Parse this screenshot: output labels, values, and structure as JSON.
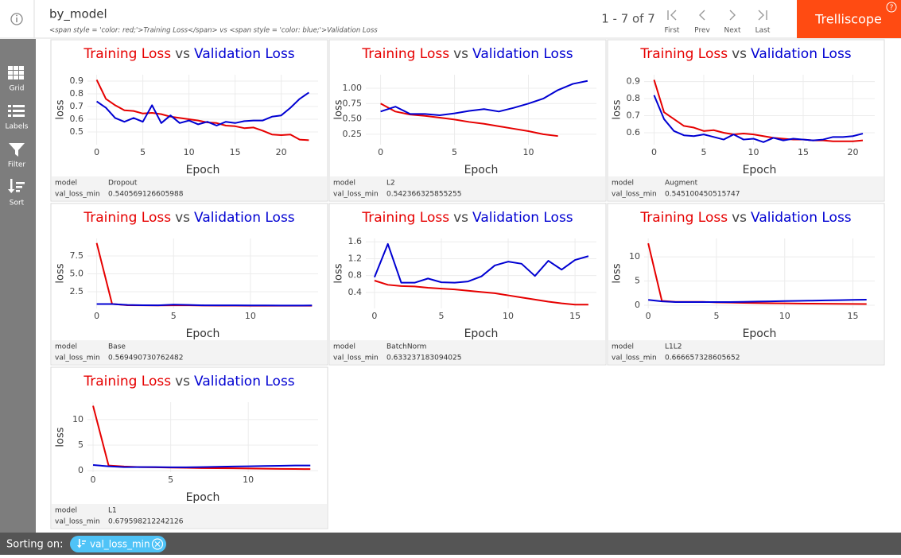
{
  "header": {
    "title": "by_model",
    "subtitle": "<span style = 'color: red;'>Training Loss</span> vs <span style = 'color: blue;'>Validation Loss",
    "pagination": "1 - 7 of 7",
    "nav": [
      "First",
      "Prev",
      "Next",
      "Last"
    ],
    "brand": "Trelliscope",
    "help": "?"
  },
  "sidebar": [
    "Grid",
    "Labels",
    "Filter",
    "Sort"
  ],
  "footer": {
    "label": "Sorting on:",
    "sort": "val_loss_min"
  },
  "panels": [
    {
      "fields": [
        {
          "name": "model",
          "value": "Dropout"
        },
        {
          "name": "val_loss_min",
          "value": 0.540569126605988
        }
      ]
    },
    {
      "fields": [
        {
          "name": "model",
          "value": "L2"
        },
        {
          "name": "val_loss_min",
          "value": 0.542366325855255
        }
      ]
    },
    {
      "fields": [
        {
          "name": "model",
          "value": "Augment"
        },
        {
          "name": "val_loss_min",
          "value": 0.545100450515747
        }
      ]
    },
    {
      "fields": [
        {
          "name": "model",
          "value": "Base"
        },
        {
          "name": "val_loss_min",
          "value": 0.569490730762482
        }
      ]
    },
    {
      "fields": [
        {
          "name": "model",
          "value": "BatchNorm"
        },
        {
          "name": "val_loss_min",
          "value": 0.633237183094025
        }
      ]
    },
    {
      "fields": [
        {
          "name": "model",
          "value": "L1L2"
        },
        {
          "name": "val_loss_min",
          "value": 0.666657328605652
        }
      ]
    },
    {
      "fields": [
        {
          "name": "model",
          "value": "L1"
        },
        {
          "name": "val_loss_min",
          "value": 0.679598212242126
        }
      ]
    }
  ],
  "chart_data": [
    {
      "type": "line",
      "title_joiner": "vs",
      "xlabel": "Epoch",
      "ylabel": "loss",
      "grid": true,
      "x": [
        0,
        1,
        2,
        3,
        4,
        5,
        6,
        7,
        8,
        9,
        10,
        11,
        12,
        13,
        14,
        15,
        16,
        17,
        18,
        19,
        20,
        21,
        22,
        23
      ],
      "series": [
        {
          "name": "Training Loss",
          "color": "#e60000",
          "values": [
            0.91,
            0.76,
            0.71,
            0.67,
            0.665,
            0.645,
            0.65,
            0.64,
            0.62,
            0.61,
            0.6,
            0.59,
            0.575,
            0.57,
            0.55,
            0.545,
            0.53,
            0.535,
            0.51,
            0.48,
            0.475,
            0.48,
            0.44,
            0.435
          ]
        },
        {
          "name": "Validation Loss",
          "color": "#0000d2",
          "values": [
            0.74,
            0.69,
            0.61,
            0.58,
            0.61,
            0.58,
            0.71,
            0.57,
            0.63,
            0.57,
            0.59,
            0.56,
            0.58,
            0.55,
            0.58,
            0.57,
            0.585,
            0.59,
            0.59,
            0.62,
            0.63,
            0.69,
            0.76,
            0.81
          ]
        }
      ],
      "xlim": [
        -1,
        24
      ],
      "ylim": [
        0.4,
        0.95
      ],
      "xticks": [
        0,
        5,
        10,
        15,
        20
      ],
      "yticks": [
        0.5,
        0.6,
        0.7,
        0.8,
        0.9
      ]
    },
    {
      "type": "line",
      "title_joiner": "vs",
      "xlabel": "Epoch",
      "ylabel": "loss",
      "grid": true,
      "x": [
        0,
        1,
        2,
        3,
        4,
        5,
        6,
        7,
        8,
        9,
        10,
        11,
        12,
        13,
        14
      ],
      "series": [
        {
          "name": "Training Loss",
          "color": "#e60000",
          "values": [
            0.75,
            0.62,
            0.57,
            0.55,
            0.52,
            0.49,
            0.45,
            0.42,
            0.38,
            0.34,
            0.3,
            0.25,
            0.22,
            null,
            null
          ]
        },
        {
          "name": "Validation Loss",
          "color": "#0000d2",
          "values": [
            0.62,
            0.7,
            0.58,
            0.58,
            0.56,
            0.59,
            0.63,
            0.66,
            0.62,
            0.68,
            0.75,
            0.83,
            0.97,
            1.07,
            1.12
          ]
        }
      ],
      "xlim": [
        -1,
        14.6
      ],
      "ylim": [
        0.08,
        1.22
      ],
      "xticks": [
        0,
        5,
        10
      ],
      "yticks": [
        0.25,
        {
          "value": 0.5,
          "label": "0.50"
        },
        0.75,
        {
          "value": 1,
          "label": "1.00"
        }
      ]
    },
    {
      "type": "line",
      "title_joiner": "vs",
      "xlabel": "Epoch",
      "ylabel": "loss",
      "grid": true,
      "x": [
        0,
        1,
        2,
        3,
        4,
        5,
        6,
        7,
        8,
        9,
        10,
        11,
        12,
        13,
        14,
        15,
        16,
        17,
        18,
        19,
        20,
        21
      ],
      "series": [
        {
          "name": "Training Loss",
          "color": "#e60000",
          "values": [
            0.91,
            0.72,
            0.68,
            0.64,
            0.63,
            0.61,
            0.615,
            0.6,
            0.59,
            0.595,
            0.59,
            0.58,
            0.57,
            0.565,
            0.56,
            0.56,
            0.555,
            0.555,
            0.55,
            0.55,
            0.55,
            0.555
          ]
        },
        {
          "name": "Validation Loss",
          "color": "#0000d2",
          "values": [
            0.82,
            0.68,
            0.61,
            0.585,
            0.58,
            0.59,
            0.575,
            0.56,
            0.59,
            0.56,
            0.565,
            0.545,
            0.57,
            0.555,
            0.565,
            0.56,
            0.555,
            0.56,
            0.575,
            0.575,
            0.58,
            0.595
          ]
        }
      ],
      "xlim": [
        -1,
        22.2
      ],
      "ylim": [
        0.53,
        0.94
      ],
      "xticks": [
        0,
        5,
        10,
        15,
        20
      ],
      "yticks": [
        0.6,
        0.7,
        0.8,
        0.9
      ]
    },
    {
      "type": "line",
      "title_joiner": "vs",
      "xlabel": "Epoch",
      "ylabel": "loss",
      "grid": true,
      "x": [
        0,
        1,
        2,
        3,
        4,
        5,
        6,
        7,
        8,
        9,
        10,
        11,
        12,
        13,
        14
      ],
      "series": [
        {
          "name": "Training Loss",
          "color": "#e60000",
          "values": [
            9.3,
            0.8,
            0.62,
            0.6,
            0.58,
            0.6,
            0.6,
            0.57,
            0.56,
            0.56,
            0.55,
            0.55,
            0.54,
            0.54,
            0.54
          ]
        },
        {
          "name": "Validation Loss",
          "color": "#0000d2",
          "values": [
            0.78,
            0.78,
            0.65,
            0.62,
            0.6,
            0.7,
            0.65,
            0.6,
            0.6,
            0.6,
            0.58,
            0.58,
            0.57,
            0.57,
            0.58
          ]
        }
      ],
      "xlim": [
        -0.6,
        14.4
      ],
      "ylim": [
        0.17,
        9.94
      ],
      "xticks": [
        0,
        5,
        10
      ],
      "yticks": [
        2.5,
        {
          "value": 5,
          "label": "5.0"
        },
        7.5
      ]
    },
    {
      "type": "line",
      "title_joiner": "vs",
      "xlabel": "Epoch",
      "ylabel": "loss",
      "grid": true,
      "x": [
        0,
        1,
        2,
        3,
        4,
        5,
        6,
        7,
        8,
        9,
        10,
        11,
        12,
        13,
        14,
        15,
        16
      ],
      "series": [
        {
          "name": "Training Loss",
          "color": "#e60000",
          "values": [
            0.68,
            0.58,
            0.55,
            0.54,
            0.51,
            0.49,
            0.47,
            0.44,
            0.41,
            0.38,
            0.33,
            0.28,
            0.23,
            0.18,
            0.14,
            0.11,
            0.11
          ]
        },
        {
          "name": "Validation Loss",
          "color": "#0000d2",
          "values": [
            0.76,
            1.55,
            0.63,
            0.63,
            0.73,
            0.64,
            0.63,
            0.66,
            0.78,
            1.04,
            1.13,
            1.08,
            0.79,
            1.15,
            0.94,
            1.17,
            1.26
          ]
        }
      ],
      "xlim": [
        -0.65,
        16.6
      ],
      "ylim": [
        0.02,
        1.68
      ],
      "xticks": [
        0,
        5,
        10,
        15
      ],
      "yticks": [
        0.4,
        0.8,
        1.2,
        1.6
      ]
    },
    {
      "type": "line",
      "title_joiner": "vs",
      "xlabel": "Epoch",
      "ylabel": "loss",
      "grid": true,
      "x": [
        0,
        1,
        2,
        3,
        4,
        5,
        6,
        7,
        8,
        9,
        10,
        11,
        12,
        13,
        14,
        15,
        16
      ],
      "series": [
        {
          "name": "Training Loss",
          "color": "#e60000",
          "values": [
            12.8,
            0.9,
            0.7,
            0.7,
            0.7,
            0.6,
            0.55,
            0.5,
            0.45,
            0.4,
            0.38,
            0.35,
            0.32,
            0.3,
            0.28,
            0.26,
            0.25
          ]
        },
        {
          "name": "Validation Loss",
          "color": "#0000d2",
          "values": [
            1.1,
            0.8,
            0.65,
            0.65,
            0.65,
            0.65,
            0.65,
            0.7,
            0.75,
            0.8,
            0.85,
            0.9,
            0.95,
            1.0,
            1.05,
            1.1,
            1.15
          ]
        }
      ],
      "xlim": [
        -0.3,
        16.6
      ],
      "ylim": [
        -0.66,
        13.8
      ],
      "xticks": [
        0,
        5,
        10,
        15
      ],
      "yticks": [
        0,
        5,
        10
      ]
    },
    {
      "type": "line",
      "title_joiner": "vs",
      "xlabel": "Epoch",
      "ylabel": "loss",
      "grid": true,
      "x": [
        0,
        1,
        2,
        3,
        4,
        5,
        6,
        7,
        8,
        9,
        10,
        11,
        12,
        13,
        14
      ],
      "series": [
        {
          "name": "Training Loss",
          "color": "#e60000",
          "values": [
            12.7,
            1.0,
            0.8,
            0.7,
            0.65,
            0.6,
            0.55,
            0.5,
            0.48,
            0.45,
            0.42,
            0.38,
            0.35,
            0.32,
            0.3
          ]
        },
        {
          "name": "Validation Loss",
          "color": "#0000d2",
          "values": [
            1.1,
            0.85,
            0.7,
            0.7,
            0.7,
            0.65,
            0.65,
            0.7,
            0.75,
            0.8,
            0.85,
            0.9,
            0.95,
            1.0,
            1.0
          ]
        }
      ],
      "xlim": [
        -0.36,
        14.5
      ],
      "ylim": [
        -0.3,
        13.4
      ],
      "xticks": [
        0,
        5,
        10
      ],
      "yticks": [
        0,
        5,
        10
      ]
    }
  ]
}
